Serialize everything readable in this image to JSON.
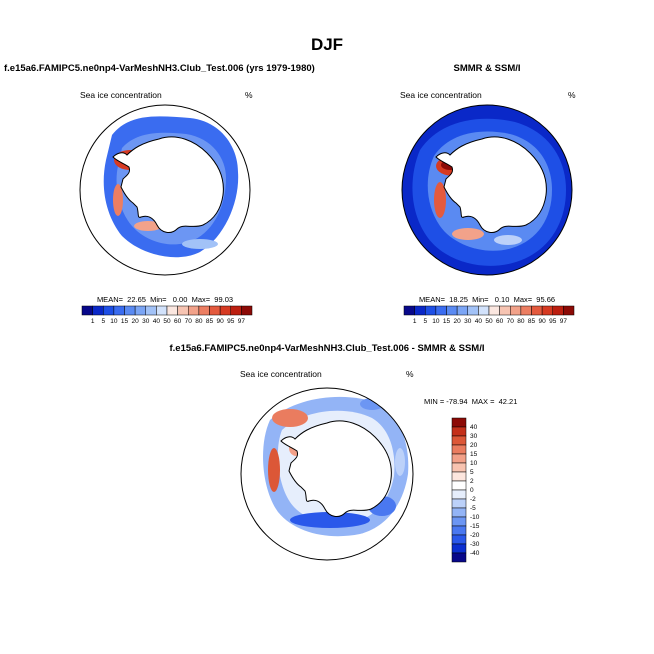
{
  "page": {
    "season": "DJF",
    "subtitle_model": "f.e15a6.FAMIPC5.ne0np4-VarMeshNH3.Club_Test.006 (yrs 1979-1980)",
    "subtitle_obs": "SMMR & SSM/I",
    "subtitle_diff": "f.e15a6.FAMIPC5.ne0np4-VarMeshNH3.Club_Test.006 - SMMR & SSM/I"
  },
  "colors": {
    "sequential_scale": [
      "#08088a",
      "#0a28c8",
      "#1e4fe6",
      "#3a6cf0",
      "#5a8af2",
      "#7ba5f5",
      "#a2c2f7",
      "#d2e2fb",
      "#fbe7e0",
      "#f7c4b2",
      "#f2a28a",
      "#ec7e62",
      "#e45a3e",
      "#d63a22",
      "#bc1f10",
      "#8c0a06"
    ],
    "diverging_scale": [
      "#08088a",
      "#0b2fd0",
      "#2a58ea",
      "#4a78f0",
      "#6c96f3",
      "#93b4f6",
      "#bcd1f9",
      "#e6eefc",
      "#ffffff",
      "#fde6de",
      "#f8c3b0",
      "#f2a088",
      "#ea7c5f",
      "#dc5737",
      "#c4301a",
      "#8c0a06"
    ],
    "land": "#ffffff",
    "outline": "#000000"
  },
  "chart_data": [
    {
      "type": "heatmap",
      "projection": "south-polar-stereographic",
      "panel": "model",
      "title": "Sea ice concentration",
      "units": "%",
      "stats_label": "MEAN=  22.65  Min=   0.00  Max=  99.03",
      "stats": {
        "mean": 22.65,
        "min": 0.0,
        "max": 99.03
      },
      "levels": [
        1,
        5,
        10,
        15,
        20,
        30,
        40,
        50,
        60,
        70,
        80,
        85,
        90,
        95,
        97
      ],
      "level_labels": [
        "1",
        "5",
        "10",
        "15",
        "20",
        "30",
        "40",
        "50",
        "60",
        "70",
        "80",
        "85",
        "90",
        "95",
        "97"
      ],
      "colorbar_orientation": "horizontal"
    },
    {
      "type": "heatmap",
      "projection": "south-polar-stereographic",
      "panel": "observations",
      "title": "Sea ice concentration",
      "units": "%",
      "stats_label": "MEAN=  18.25  Min=   0.10  Max=  95.66",
      "stats": {
        "mean": 18.25,
        "min": 0.1,
        "max": 95.66
      },
      "levels": [
        1,
        5,
        10,
        15,
        20,
        30,
        40,
        50,
        60,
        70,
        80,
        85,
        90,
        95,
        97
      ],
      "level_labels": [
        "1",
        "5",
        "10",
        "15",
        "20",
        "30",
        "40",
        "50",
        "60",
        "70",
        "80",
        "85",
        "90",
        "95",
        "97"
      ],
      "colorbar_orientation": "horizontal"
    },
    {
      "type": "heatmap",
      "projection": "south-polar-stereographic",
      "panel": "difference",
      "title": "Sea ice concentration",
      "units": "%",
      "stats_label": "MIN = -78.94  MAX =  42.21",
      "stats": {
        "min": -78.94,
        "max": 42.21
      },
      "levels": [
        40,
        30,
        20,
        15,
        10,
        5,
        2,
        0,
        -2,
        -5,
        -10,
        -15,
        -20,
        -30,
        -40
      ],
      "level_labels": [
        "40",
        "30",
        "20",
        "15",
        "10",
        "5",
        "2",
        "0",
        "-2",
        "-5",
        "-10",
        "-15",
        "-20",
        "-30",
        "-40"
      ],
      "colorbar_orientation": "vertical"
    }
  ]
}
